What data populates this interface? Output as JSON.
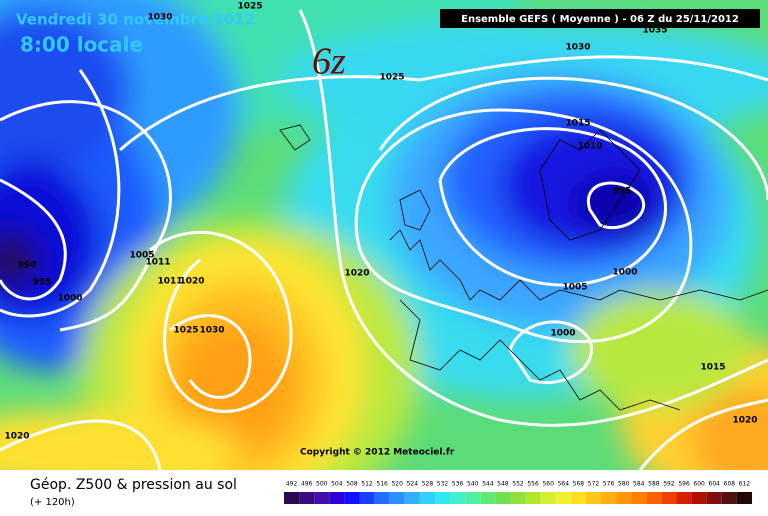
{
  "header": {
    "date": "Vendredi 30 novembre 2012",
    "time": "8:00 locale",
    "run": "Ensemble GEFS ( Moyenne )  -  06 Z du 25/11/2012",
    "run_tag": "6z",
    "copyright": "Copyright © 2012 Meteociel.fr"
  },
  "isobar_labels": [
    "1030",
    "1025",
    "1035",
    "1030",
    "1025",
    "1015",
    "1010",
    "995",
    "1000",
    "1005",
    "1000",
    "1015",
    "1020",
    "1020",
    "990",
    "995",
    "1000",
    "1005",
    "1011",
    "1011",
    "1020",
    "1025",
    "1030",
    "1020"
  ],
  "footer": {
    "title": "Géop. Z500 & pression au sol",
    "lead": "(+ 120h)"
  },
  "scale": {
    "labels": [
      492,
      496,
      500,
      504,
      508,
      512,
      516,
      520,
      524,
      528,
      532,
      536,
      540,
      544,
      548,
      552,
      556,
      560,
      564,
      568,
      572,
      576,
      580,
      584,
      588,
      592,
      596,
      600,
      604,
      608,
      612
    ]
  }
}
